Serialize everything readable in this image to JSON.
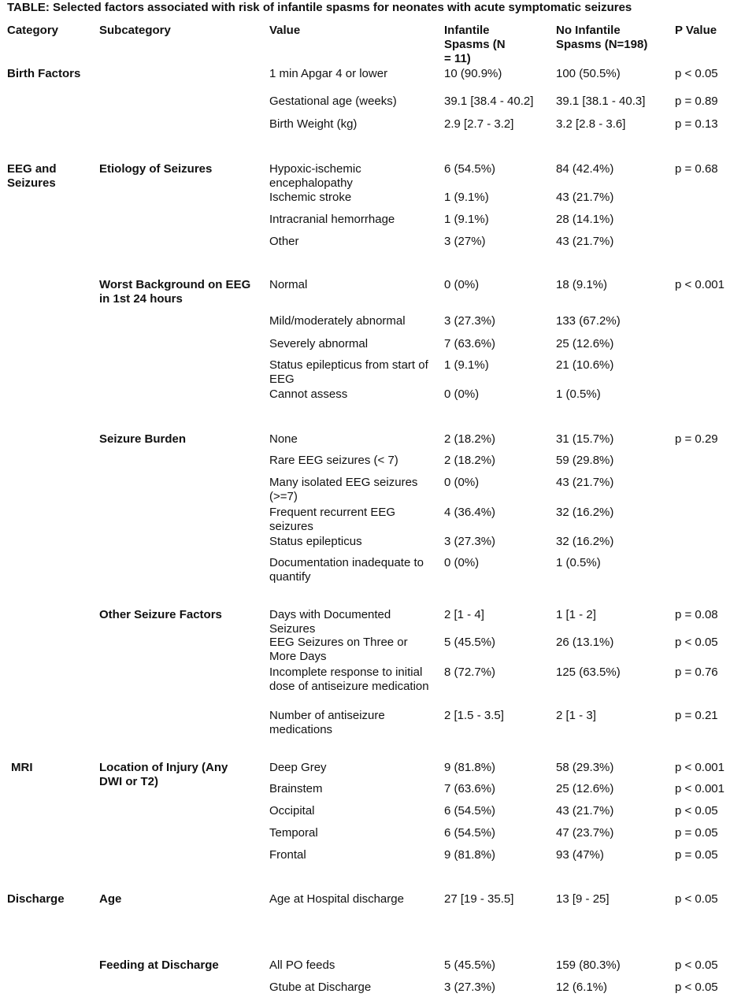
{
  "title": "TABLE: Selected factors associated with risk of infantile spasms for neonates with acute symptomatic seizures",
  "headers": [
    "Category",
    "Subcategory",
    "Value",
    "Infantile Spasms (N = 11)",
    "No Infantile Spasms (N=198)",
    "P Value"
  ],
  "rows": [
    {
      "category": "Birth Factors",
      "value": "1 min Apgar 4 or lower",
      "spasms": "10 (90.9%)",
      "no_spasms": "100 (50.5%)",
      "p": "p < 0.05"
    },
    {
      "value": "Gestational age (weeks)",
      "spasms": "39.1 [38.4 - 40.2]",
      "no_spasms": "39.1 [38.1 - 40.3]",
      "p": "p = 0.89"
    },
    {
      "value": "Birth Weight (kg)",
      "spasms": "2.9 [2.7 - 3.2]",
      "no_spasms": "3.2 [2.8 - 3.6]",
      "p": "p = 0.13"
    },
    {
      "category": "EEG and Seizures",
      "subcategory": "Etiology of Seizures",
      "value": "Hypoxic-ischemic encephalopathy",
      "spasms": "6 (54.5%)",
      "no_spasms": "84 (42.4%)",
      "p": "p = 0.68"
    },
    {
      "value": "Ischemic stroke",
      "spasms": "1 (9.1%)",
      "no_spasms": "43 (21.7%)"
    },
    {
      "value": "Intracranial hemorrhage",
      "spasms": "1 (9.1%)",
      "no_spasms": "28 (14.1%)"
    },
    {
      "value": "Other",
      "spasms": "3 (27%)",
      "no_spasms": "43 (21.7%)"
    },
    {
      "subcategory": "Worst Background on EEG in 1st 24 hours",
      "value": "Normal",
      "spasms": "0 (0%)",
      "no_spasms": "18 (9.1%)",
      "p": "p < 0.001"
    },
    {
      "value": "Mild/moderately abnormal",
      "spasms": "3 (27.3%)",
      "no_spasms": "133 (67.2%)"
    },
    {
      "value": "Severely abnormal",
      "spasms": "7 (63.6%)",
      "no_spasms": "25 (12.6%)"
    },
    {
      "value": "Status epilepticus from start of EEG",
      "spasms": "1 (9.1%)",
      "no_spasms": "21 (10.6%)"
    },
    {
      "value": "Cannot assess",
      "spasms": "0 (0%)",
      "no_spasms": "1 (0.5%)"
    },
    {
      "subcategory": "Seizure Burden",
      "value": "None",
      "spasms": "2 (18.2%)",
      "no_spasms": "31 (15.7%)",
      "p": "p = 0.29"
    },
    {
      "value": "Rare EEG seizures (< 7)",
      "spasms": "2 (18.2%)",
      "no_spasms": "59 (29.8%)"
    },
    {
      "value": "Many isolated EEG seizures (>=7)",
      "spasms": "0 (0%)",
      "no_spasms": "43 (21.7%)"
    },
    {
      "value": "Frequent recurrent EEG seizures",
      "spasms": "4 (36.4%)",
      "no_spasms": "32 (16.2%)"
    },
    {
      "value": "Status epilepticus",
      "spasms": "3 (27.3%)",
      "no_spasms": "32 (16.2%)"
    },
    {
      "value": "Documentation inadequate to quantify",
      "spasms": "0 (0%)",
      "no_spasms": "1 (0.5%)"
    },
    {
      "subcategory": "Other Seizure Factors",
      "value": "Days with Documented Seizures",
      "spasms": "2 [1 - 4]",
      "no_spasms": "1 [1 - 2]",
      "p": "p = 0.08"
    },
    {
      "value": "EEG Seizures on Three or More Days",
      "spasms": "5 (45.5%)",
      "no_spasms": "26 (13.1%)",
      "p": "p < 0.05"
    },
    {
      "value": "Incomplete response to initial dose of antiseizure medication",
      "spasms": "8 (72.7%)",
      "no_spasms": "125 (63.5%)",
      "p": "p = 0.76"
    },
    {
      "value": "Number of antiseizure medications",
      "spasms": "2 [1.5 - 3.5]",
      "no_spasms": "2 [1 - 3]",
      "p": "p = 0.21"
    },
    {
      "category": "MRI",
      "subcategory": "Location of Injury (Any DWI or T2)",
      "value": "Deep Grey",
      "spasms": "9 (81.8%)",
      "no_spasms": "58 (29.3%)",
      "p": "p < 0.001"
    },
    {
      "value": "Brainstem",
      "spasms": "7 (63.6%)",
      "no_spasms": "25 (12.6%)",
      "p": "p < 0.001"
    },
    {
      "value": "Occipital",
      "spasms": "6 (54.5%)",
      "no_spasms": "43 (21.7%)",
      "p": "p < 0.05"
    },
    {
      "value": "Temporal",
      "spasms": "6 (54.5%)",
      "no_spasms": "47 (23.7%)",
      "p": "p = 0.05"
    },
    {
      "value": "Frontal",
      "spasms": "9 (81.8%)",
      "no_spasms": "93 (47%)",
      "p": "p = 0.05"
    },
    {
      "category": "Discharge",
      "subcategory": "Age",
      "value": "Age at Hospital discharge",
      "spasms": "27 [19 - 35.5]",
      "no_spasms": "13 [9 - 25]",
      "p": "p < 0.05"
    },
    {
      "subcategory": "Feeding at Discharge",
      "value": "All PO feeds",
      "spasms": "5 (45.5%)",
      "no_spasms": "159 (80.3%)",
      "p": "p < 0.05"
    },
    {
      "value": "Gtube at Discharge",
      "spasms": "3 (27.3%)",
      "no_spasms": "12 (6.1%)",
      "p": "p < 0.05"
    }
  ]
}
